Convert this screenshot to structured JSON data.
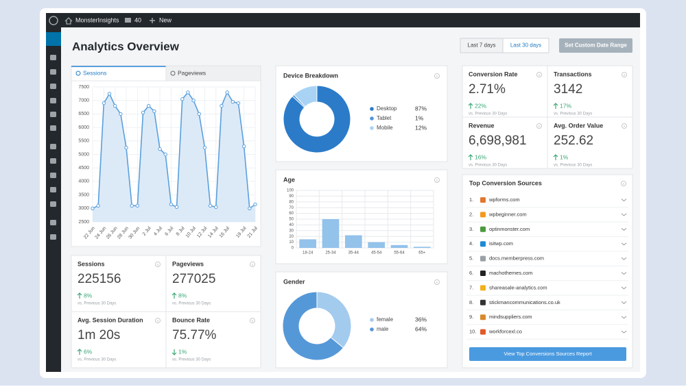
{
  "admin_bar": {
    "site_name": "MonsterInsights",
    "comments": "40",
    "new": "New"
  },
  "header": {
    "title": "Analytics Overview",
    "date_ranges": [
      "Last 7 days",
      "Last 30 days"
    ],
    "active_range": 1,
    "custom_range": "Set Custom Date Range"
  },
  "traffic_tabs": {
    "items": [
      "Sessions",
      "Pageviews"
    ],
    "active": 0
  },
  "chart_data": [
    {
      "type": "line",
      "categories": [
        "22 Jun",
        null,
        "24 Jun",
        null,
        "26 Jun",
        null,
        "28 Jun",
        null,
        "30 Jun",
        null,
        "2 Jul",
        null,
        "4 Jul",
        null,
        "6 Jul",
        null,
        "8 Jul",
        null,
        "10 Jul",
        null,
        "12 Jul",
        null,
        "14 Jul",
        null,
        "16 Jul",
        null,
        null,
        "19 Jul",
        null,
        "21 Jul"
      ],
      "values": [
        3000,
        3100,
        6900,
        7250,
        6800,
        6500,
        5250,
        3100,
        3100,
        6550,
        6800,
        6600,
        5200,
        5000,
        3150,
        3050,
        7050,
        7300,
        7000,
        6500,
        5250,
        3100,
        3050,
        6800,
        7300,
        6950,
        6900,
        5300,
        3000,
        3150
      ],
      "color": "#5a9fdc",
      "fill": "#dceaf8",
      "ylim": [
        2500,
        7500
      ],
      "yticks": [
        2500,
        3000,
        3500,
        4000,
        4500,
        5000,
        5500,
        6000,
        6500,
        7000,
        7500
      ],
      "grid": true
    },
    {
      "type": "pie",
      "title": "Device Breakdown",
      "categories": [
        "Desktop",
        "Tablet",
        "Mobile"
      ],
      "values": [
        87,
        1,
        12
      ],
      "value_labels": [
        "87%",
        "1%",
        "12%"
      ],
      "colors": [
        "#2b7bc9",
        "#4d97da",
        "#a9d3f4"
      ]
    },
    {
      "type": "bar",
      "title": "Age",
      "categories": [
        "18-24",
        "25-34",
        "35-44",
        "45-54",
        "55-64",
        "65+"
      ],
      "values": [
        15,
        50,
        22,
        10,
        5,
        2
      ],
      "color": "#93c2ea",
      "ylim": [
        0,
        100
      ],
      "yticks": [
        0,
        10,
        20,
        30,
        40,
        50,
        60,
        70,
        80,
        90,
        100
      ],
      "grid": true
    },
    {
      "type": "pie",
      "title": "Gender",
      "categories": [
        "female",
        "male"
      ],
      "values": [
        36,
        64
      ],
      "value_labels": [
        "36%",
        "64%"
      ],
      "colors": [
        "#a3cbee",
        "#5598d8"
      ]
    }
  ],
  "site_metrics": [
    {
      "label": "Sessions",
      "value": "225156",
      "change": "8%",
      "direction": "up",
      "comparison": "vs. Previous 30 Days"
    },
    {
      "label": "Pageviews",
      "value": "277025",
      "change": "8%",
      "direction": "up",
      "comparison": "vs. Previous 30 Days"
    },
    {
      "label": "Avg. Session Duration",
      "value": "1m 20s",
      "change": "6%",
      "direction": "up",
      "comparison": "vs. Previous 30 Days"
    },
    {
      "label": "Bounce Rate",
      "value": "75.77%",
      "change": "1%",
      "direction": "down",
      "comparison": "vs. Previous 30 Days"
    }
  ],
  "ecommerce_metrics": [
    {
      "label": "Conversion Rate",
      "value": "2.71%",
      "change": "22%",
      "direction": "up",
      "comparison": "vs. Previous 30 Days"
    },
    {
      "label": "Transactions",
      "value": "3142",
      "change": "17%",
      "direction": "up",
      "comparison": "vs. Previous 30 Days"
    },
    {
      "label": "Revenue",
      "value": "6,698,981",
      "change": "16%",
      "direction": "up",
      "comparison": "vs. Previous 30 Days"
    },
    {
      "label": "Avg. Order Value",
      "value": "252.62",
      "change": "1%",
      "direction": "up",
      "comparison": "vs. Previous 30 Days"
    }
  ],
  "conversion_sources": {
    "title": "Top Conversion Sources",
    "items": [
      {
        "rank": "1.",
        "domain": "wpforms.com"
      },
      {
        "rank": "2.",
        "domain": "wpbeginner.com"
      },
      {
        "rank": "3.",
        "domain": "optinmonster.com"
      },
      {
        "rank": "4.",
        "domain": "isitwp.com"
      },
      {
        "rank": "5.",
        "domain": "docs.memberpress.com"
      },
      {
        "rank": "6.",
        "domain": "machothemes.com"
      },
      {
        "rank": "7.",
        "domain": "shareasale-analytics.com"
      },
      {
        "rank": "8.",
        "domain": "stickmancommunications.co.uk"
      },
      {
        "rank": "9.",
        "domain": "mindsuppliers.com"
      },
      {
        "rank": "10.",
        "domain": "workforcexl.co"
      }
    ],
    "button": "View Top Conversions Sources Report"
  }
}
